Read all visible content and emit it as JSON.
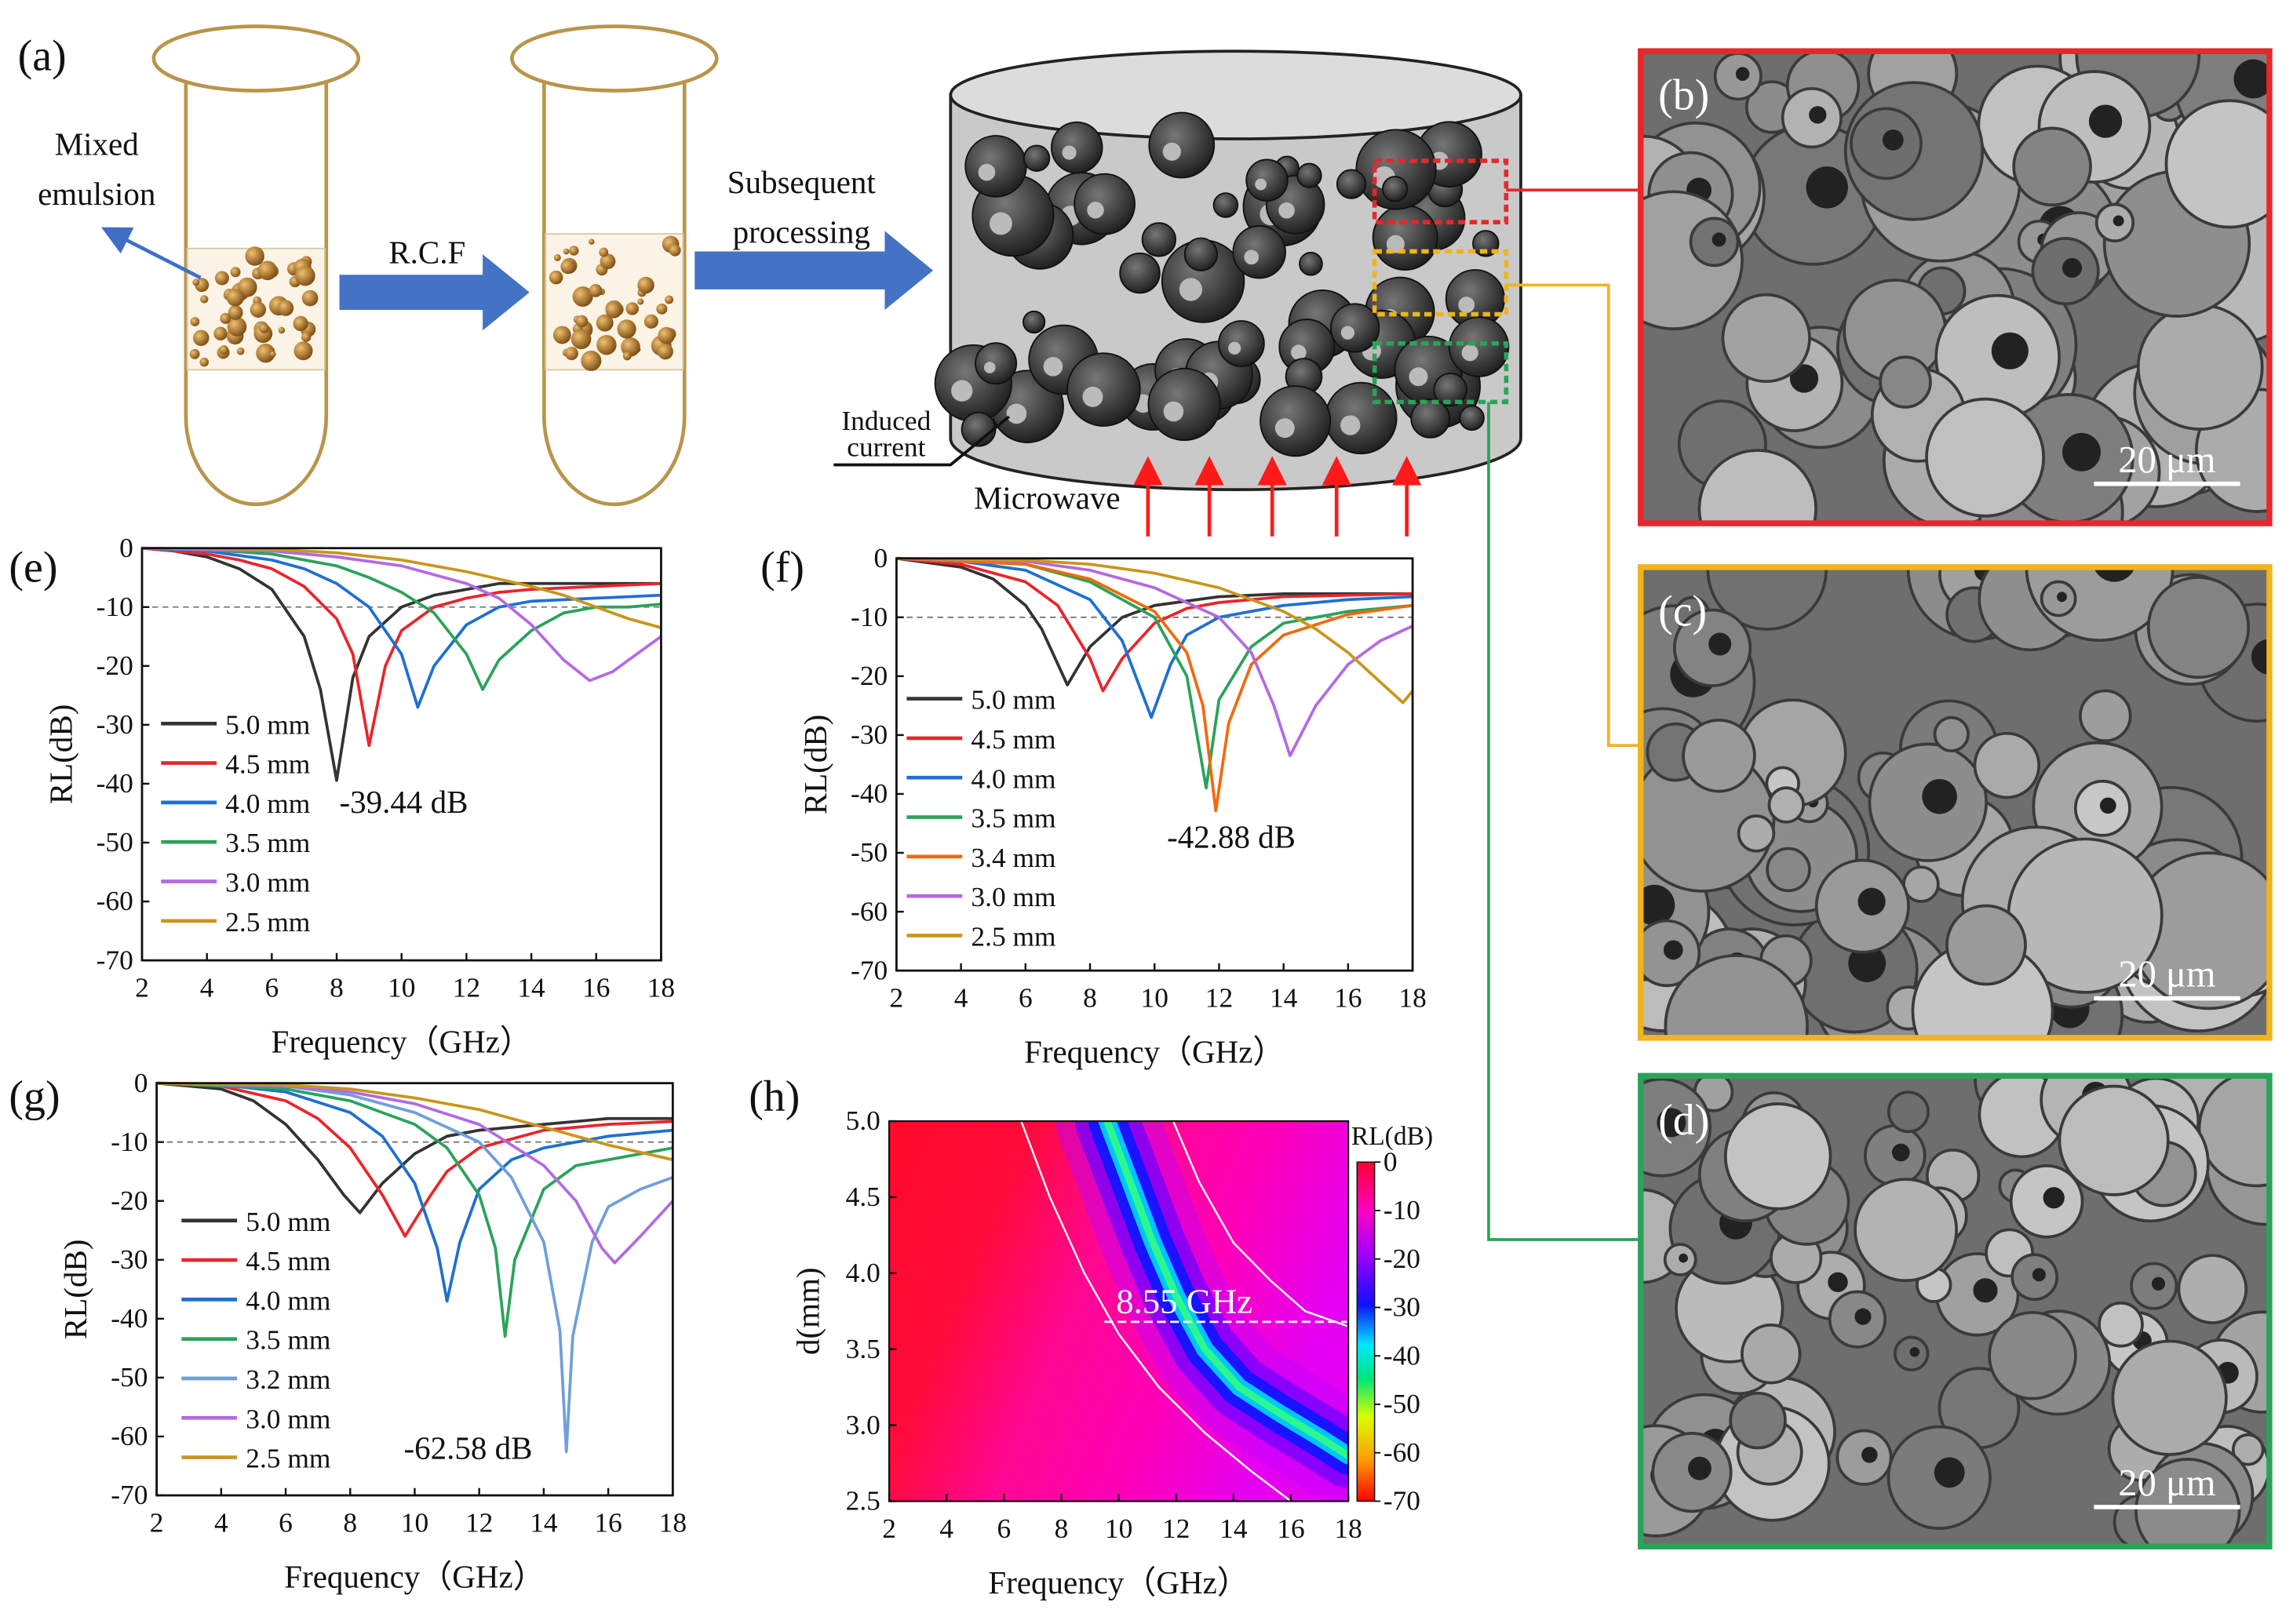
{
  "schematic": {
    "label": "(a)",
    "mixed_emulsion": [
      "Mixed",
      "emulsion"
    ],
    "rcf": "R.C.F",
    "subsequent": [
      "Subsequent",
      "processing"
    ],
    "induced": [
      "Induced",
      "current"
    ],
    "microwave": "Microwave"
  },
  "sem": [
    {
      "label": "(b)",
      "scale": "20 μm"
    },
    {
      "label": "(c)",
      "scale": "20 μm"
    },
    {
      "label": "(d)",
      "scale": "20 μm"
    }
  ],
  "chart_data": [
    {
      "type": "line",
      "label": "(e)",
      "xlabel": "Frequency（GHz）",
      "ylabel": "RL(dB)",
      "xlim": [
        2,
        18
      ],
      "ylim": [
        -70,
        0
      ],
      "xticks": [
        2,
        4,
        6,
        8,
        10,
        12,
        14,
        16,
        18
      ],
      "yticks": [
        0,
        -10,
        -20,
        -30,
        -40,
        -50,
        -60,
        -70
      ],
      "reference_line": -10,
      "annotation": "-39.44 dB",
      "series": [
        {
          "name": "5.0 mm",
          "color": "#333333",
          "x": [
            2,
            3,
            4,
            5,
            6,
            7,
            7.5,
            8,
            8.5,
            9,
            10,
            11,
            12,
            13,
            14,
            16,
            18
          ],
          "values": [
            0,
            -0.5,
            -1.5,
            -3.5,
            -7,
            -15,
            -24,
            -39.44,
            -22,
            -15,
            -10,
            -8,
            -7,
            -6,
            -6,
            -6,
            -6
          ]
        },
        {
          "name": "4.5 mm",
          "color": "#e8262b",
          "x": [
            2,
            4,
            5,
            6,
            7,
            8,
            8.5,
            9,
            9.5,
            10,
            11,
            12,
            13,
            14,
            16,
            18
          ],
          "values": [
            0,
            -1,
            -2,
            -3.5,
            -6.5,
            -12,
            -18,
            -33.5,
            -20,
            -14,
            -10,
            -8.5,
            -7.5,
            -7,
            -6.5,
            -6
          ]
        },
        {
          "name": "4.0 mm",
          "color": "#1f6fd1",
          "x": [
            2,
            4,
            6,
            7,
            8,
            9,
            10,
            10.5,
            11,
            12,
            13,
            14,
            16,
            18
          ],
          "values": [
            0,
            -0.5,
            -2,
            -3.5,
            -6,
            -10,
            -18,
            -27,
            -20,
            -13,
            -10,
            -9,
            -8.5,
            -8
          ]
        },
        {
          "name": "3.5 mm",
          "color": "#2aa35a",
          "x": [
            2,
            4,
            6,
            8,
            9,
            10,
            11,
            12,
            12.5,
            13,
            14,
            15,
            16,
            17,
            18
          ],
          "values": [
            0,
            -0.3,
            -1,
            -3,
            -5,
            -7.5,
            -11,
            -18,
            -24,
            -19,
            -14,
            -11,
            -10,
            -10,
            -9.5
          ]
        },
        {
          "name": "3.0 mm",
          "color": "#b36ae2",
          "x": [
            2,
            6,
            8,
            10,
            12,
            13,
            14,
            15,
            15.8,
            16.5,
            17,
            18
          ],
          "values": [
            0,
            -0.5,
            -1.5,
            -3,
            -6,
            -8.5,
            -13,
            -19,
            -22.5,
            -21,
            -19,
            -15
          ]
        },
        {
          "name": "2.5 mm",
          "color": "#c8961c",
          "x": [
            2,
            6,
            8,
            10,
            12,
            14,
            15,
            16,
            17,
            18
          ],
          "values": [
            0,
            -0.2,
            -0.8,
            -2,
            -4,
            -6.5,
            -8,
            -10,
            -12,
            -13.5
          ]
        }
      ]
    },
    {
      "type": "line",
      "label": "(f)",
      "xlabel": "Frequency（GHz）",
      "ylabel": "RL(dB)",
      "xlim": [
        2,
        18
      ],
      "ylim": [
        -70,
        0
      ],
      "xticks": [
        2,
        4,
        6,
        8,
        10,
        12,
        14,
        16,
        18
      ],
      "yticks": [
        0,
        -10,
        -20,
        -30,
        -40,
        -50,
        -60,
        -70
      ],
      "reference_line": -10,
      "annotation": "-42.88 dB",
      "series": [
        {
          "name": "5.0 mm",
          "color": "#333333",
          "x": [
            2,
            4,
            5,
            6,
            6.5,
            7.3,
            8,
            9,
            10,
            12,
            14,
            16,
            18
          ],
          "values": [
            0,
            -1.5,
            -3.5,
            -8,
            -12,
            -21.5,
            -15,
            -10,
            -8,
            -6.5,
            -6,
            -6,
            -6
          ]
        },
        {
          "name": "4.5 mm",
          "color": "#e8262b",
          "x": [
            2,
            4,
            6,
            7,
            8,
            8.4,
            9,
            10,
            11,
            12,
            14,
            18
          ],
          "values": [
            0,
            -1,
            -4,
            -8,
            -17,
            -22.5,
            -17,
            -11,
            -8.5,
            -7.5,
            -6.5,
            -6
          ]
        },
        {
          "name": "4.0 mm",
          "color": "#1f6fd1",
          "x": [
            2,
            4,
            6,
            8,
            9,
            9.9,
            10.5,
            11,
            12,
            14,
            16,
            18
          ],
          "values": [
            0,
            -0.5,
            -2,
            -7,
            -14,
            -27,
            -18,
            -13,
            -10,
            -8,
            -7,
            -6.5
          ]
        },
        {
          "name": "3.5 mm",
          "color": "#2aa35a",
          "x": [
            2,
            6,
            8,
            10,
            11,
            11.6,
            12,
            13,
            14,
            16,
            18
          ],
          "values": [
            0,
            -1,
            -4,
            -10,
            -20,
            -39,
            -24,
            -15,
            -11,
            -9,
            -8
          ]
        },
        {
          "name": "3.4 mm",
          "color": "#f06a0c",
          "x": [
            2,
            6,
            8,
            10,
            11,
            11.5,
            11.9,
            12.3,
            13,
            14,
            16,
            18
          ],
          "values": [
            0,
            -1,
            -3.5,
            -9,
            -16,
            -25,
            -42.88,
            -28,
            -18,
            -13,
            -9.5,
            -8
          ]
        },
        {
          "name": "3.0 mm",
          "color": "#b36ae2",
          "x": [
            2,
            6,
            8,
            10,
            12,
            13,
            13.7,
            14.2,
            15,
            16,
            17,
            18
          ],
          "values": [
            0,
            -0.5,
            -2,
            -5,
            -10,
            -16,
            -25,
            -33.5,
            -25,
            -18,
            -14,
            -11.5
          ]
        },
        {
          "name": "2.5 mm",
          "color": "#c8961c",
          "x": [
            2,
            6,
            8,
            10,
            12,
            14,
            15,
            16,
            17,
            17.7,
            18
          ],
          "values": [
            0,
            -0.3,
            -1,
            -2.5,
            -5,
            -9,
            -12,
            -16,
            -21,
            -24.5,
            -22.5
          ]
        }
      ]
    },
    {
      "type": "line",
      "label": "(g)",
      "xlabel": "Frequency（GHz）",
      "ylabel": "RL(dB)",
      "xlim": [
        2,
        18
      ],
      "ylim": [
        -70,
        0
      ],
      "xticks": [
        2,
        4,
        6,
        8,
        10,
        12,
        14,
        16,
        18
      ],
      "yticks": [
        0,
        -10,
        -20,
        -30,
        -40,
        -50,
        -60,
        -70
      ],
      "reference_line": -10,
      "annotation": "-62.58 dB",
      "series": [
        {
          "name": "5.0 mm",
          "color": "#333333",
          "x": [
            2,
            4,
            5,
            6,
            7,
            7.8,
            8.3,
            9,
            10,
            11,
            12,
            14,
            16,
            18
          ],
          "values": [
            0,
            -1,
            -3,
            -7,
            -13,
            -19,
            -22,
            -17,
            -12,
            -9,
            -8,
            -7,
            -6,
            -6
          ]
        },
        {
          "name": "4.5 mm",
          "color": "#e8262b",
          "x": [
            2,
            4,
            6,
            7,
            8,
            9,
            9.7,
            10.5,
            11,
            12,
            14,
            16,
            18
          ],
          "values": [
            0,
            -0.5,
            -3,
            -6,
            -11,
            -19,
            -26,
            -19,
            -15,
            -11,
            -8,
            -7,
            -6.5
          ]
        },
        {
          "name": "4.0 mm",
          "color": "#1f6fd1",
          "x": [
            2,
            4,
            6,
            8,
            9,
            10,
            10.7,
            11,
            11.4,
            12,
            13,
            14,
            16,
            18
          ],
          "values": [
            0,
            -0.3,
            -1.5,
            -5,
            -9,
            -17,
            -28,
            -37,
            -27,
            -18,
            -13,
            -11,
            -9,
            -8
          ]
        },
        {
          "name": "3.5 mm",
          "color": "#2aa35a",
          "x": [
            2,
            6,
            8,
            10,
            11,
            12,
            12.5,
            12.8,
            13.1,
            14,
            15,
            16,
            18
          ],
          "values": [
            0,
            -1,
            -3,
            -7,
            -11,
            -19,
            -28,
            -43,
            -30,
            -18,
            -14,
            -13,
            -11
          ]
        },
        {
          "name": "3.2 mm",
          "color": "#6f9fd8",
          "x": [
            2,
            6,
            8,
            10,
            12,
            13,
            14,
            14.5,
            14.7,
            14.9,
            15.5,
            16,
            17,
            18
          ],
          "values": [
            0,
            -0.5,
            -2,
            -5,
            -10,
            -16,
            -27,
            -42,
            -62.58,
            -43,
            -27,
            -21,
            -18,
            -16
          ]
        },
        {
          "name": "3.0 mm",
          "color": "#b36ae2",
          "x": [
            2,
            6,
            8,
            10,
            12,
            14,
            15,
            15.8,
            16.2,
            17,
            18
          ],
          "values": [
            0,
            -0.5,
            -1.5,
            -3.5,
            -7,
            -14,
            -20,
            -28,
            -30.5,
            -26,
            -20
          ]
        },
        {
          "name": "2.5 mm",
          "color": "#c8961c",
          "x": [
            2,
            6,
            8,
            10,
            12,
            14,
            16,
            18
          ],
          "values": [
            0,
            -0.3,
            -1,
            -2.5,
            -4.5,
            -7.5,
            -10.5,
            -13
          ]
        }
      ]
    },
    {
      "type": "heatmap",
      "label": "(h)",
      "xlabel": "Frequency（GHz）",
      "ylabel": "d(mm)",
      "xlim": [
        2,
        18
      ],
      "ylim": [
        2.5,
        5.0
      ],
      "xticks": [
        2,
        4,
        6,
        8,
        10,
        12,
        14,
        16,
        18
      ],
      "yticks": [
        {
          "value": 2.5,
          "label": "2.5"
        },
        {
          "value": 3,
          "label": "3.0"
        },
        {
          "value": 3.5,
          "label": "3.5"
        },
        {
          "value": 4,
          "label": "4.0"
        },
        {
          "value": 4.5,
          "label": "4.5"
        },
        {
          "value": 5,
          "label": "5.0"
        }
      ],
      "colorbar": {
        "label": "RL(dB)",
        "lim": [
          -70,
          0
        ],
        "ticks": [
          0,
          -10,
          -20,
          -30,
          -40,
          -50,
          -60,
          -70
        ]
      },
      "ridge": {
        "x": [
          9.6,
          10.4,
          11.2,
          12.0,
          13.0,
          14.2,
          15.6,
          17.0,
          18.0
        ],
        "y": [
          5.0,
          4.6,
          4.2,
          3.85,
          3.5,
          3.25,
          3.08,
          2.92,
          2.8
        ]
      },
      "contours": [
        {
          "x": [
            6.6,
            7.6,
            8.8,
            10.0,
            11.4,
            13.0,
            14.6,
            16.0
          ],
          "y": [
            5.0,
            4.5,
            4.0,
            3.6,
            3.25,
            2.95,
            2.7,
            2.5
          ]
        },
        {
          "x": [
            11.9,
            12.8,
            14.0,
            15.3,
            16.5,
            18.0
          ],
          "y": [
            5.0,
            4.6,
            4.2,
            3.95,
            3.75,
            3.65
          ]
        }
      ],
      "marker": {
        "y": 3.68,
        "x": [
          9.5,
          18
        ],
        "label": "8.55 GHz"
      }
    }
  ]
}
